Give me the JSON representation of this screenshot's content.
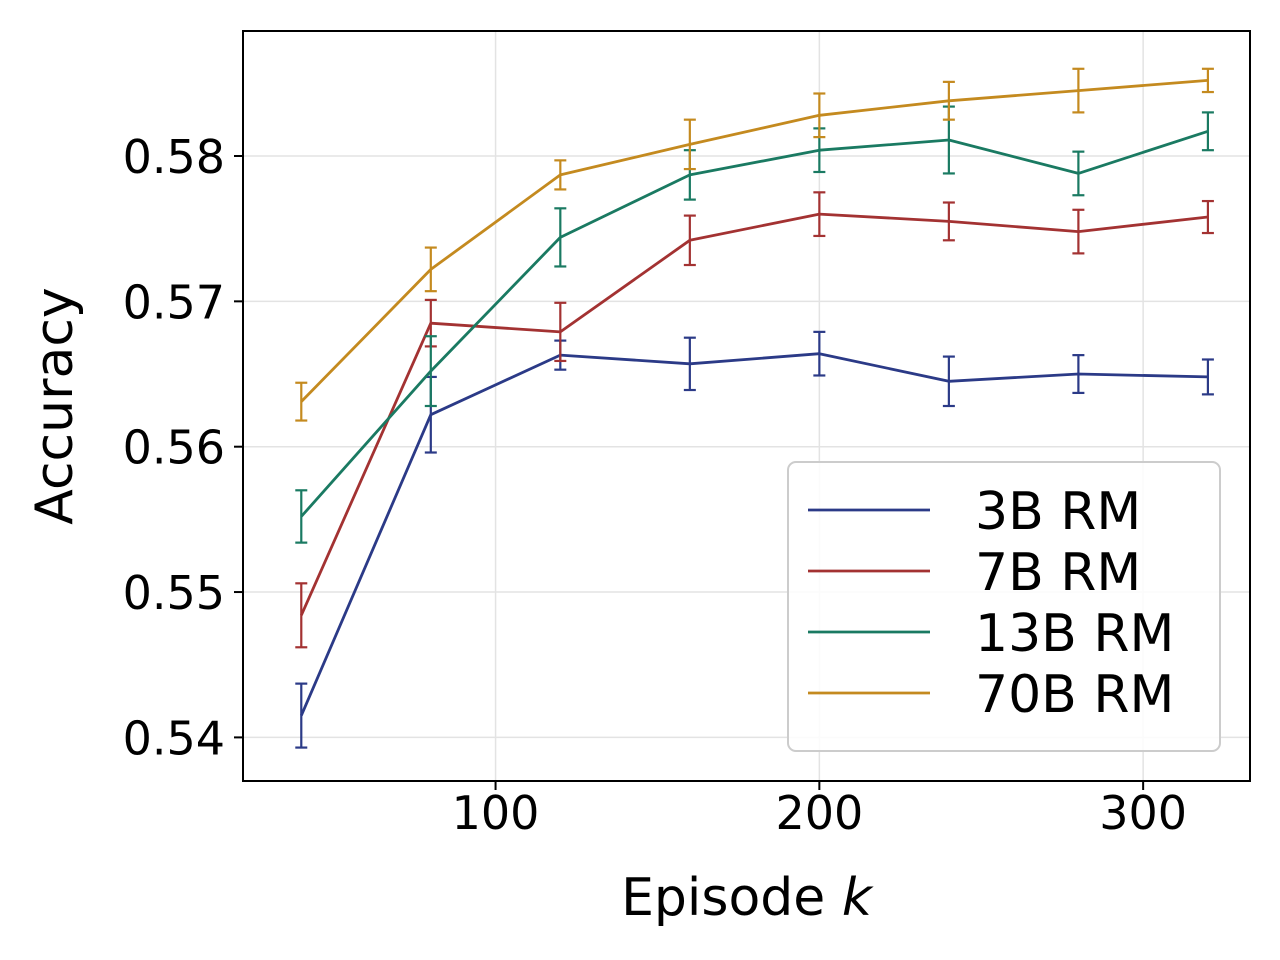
{
  "chart_data": {
    "type": "line",
    "title": "",
    "xlabel": "Episode",
    "xlabel_var": "k",
    "ylabel": "Accuracy",
    "xlim": [
      22,
      333
    ],
    "ylim": [
      0.537,
      0.5886
    ],
    "x_ticks": [
      100,
      200,
      300
    ],
    "y_ticks": [
      0.54,
      0.55,
      0.56,
      0.57,
      0.58
    ],
    "y_tick_labels": [
      "0.54",
      "0.55",
      "0.56",
      "0.57",
      "0.58"
    ],
    "x_tick_labels": [
      "100",
      "200",
      "300"
    ],
    "grid": true,
    "legend_position": "lower-right",
    "x": [
      40,
      80,
      120,
      160,
      200,
      240,
      280,
      320
    ],
    "series": [
      {
        "name": "3B RM",
        "color": "#2b3a87",
        "values": [
          0.5415,
          0.5622,
          0.5663,
          0.5657,
          0.5664,
          0.5645,
          0.565,
          0.5648
        ],
        "errors": [
          0.0022,
          0.0026,
          0.001,
          0.0018,
          0.0015,
          0.0017,
          0.0013,
          0.0012
        ]
      },
      {
        "name": "7B RM",
        "color": "#a33232",
        "values": [
          0.5484,
          0.5685,
          0.5679,
          0.5742,
          0.576,
          0.5755,
          0.5748,
          0.5758
        ],
        "errors": [
          0.0022,
          0.0016,
          0.002,
          0.0017,
          0.0015,
          0.0013,
          0.0015,
          0.0011
        ]
      },
      {
        "name": "13B RM",
        "color": "#1a7a62",
        "values": [
          0.5552,
          0.5652,
          0.5744,
          0.5787,
          0.5804,
          0.5811,
          0.5788,
          0.5817
        ],
        "errors": [
          0.0018,
          0.0024,
          0.002,
          0.0017,
          0.0015,
          0.0023,
          0.0015,
          0.0013
        ]
      },
      {
        "name": "70B RM",
        "color": "#c48a1f",
        "values": [
          0.5631,
          0.5722,
          0.5787,
          0.5808,
          0.5828,
          0.5838,
          0.5845,
          0.5852
        ],
        "errors": [
          0.0013,
          0.0015,
          0.001,
          0.0017,
          0.0015,
          0.0013,
          0.0015,
          0.0008
        ]
      }
    ]
  }
}
